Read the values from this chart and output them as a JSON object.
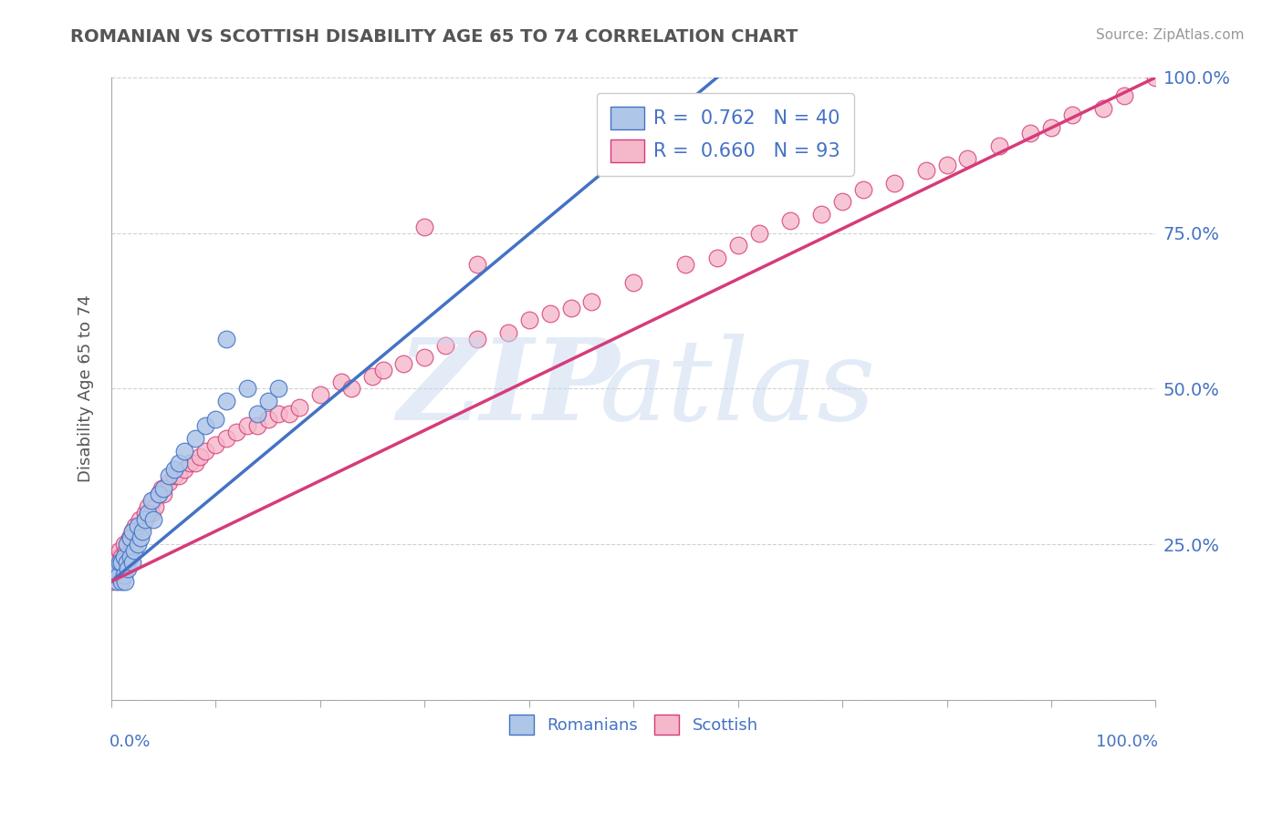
{
  "title": "ROMANIAN VS SCOTTISH DISABILITY AGE 65 TO 74 CORRELATION CHART",
  "source": "Source: ZipAtlas.com",
  "ylabel": "Disability Age 65 to 74",
  "legend_label1": "Romanians",
  "legend_label2": "Scottish",
  "romanian_color": "#aec6e8",
  "scottish_color": "#f5b8ca",
  "romanian_line_color": "#4472c4",
  "scottish_line_color": "#d63b7a",
  "background_color": "#ffffff",
  "axis_label_color": "#4472c4",
  "title_color": "#555555",
  "R_romanian": 0.762,
  "N_romanian": 40,
  "R_scottish": 0.66,
  "N_scottish": 93,
  "xlim": [
    0.0,
    1.0
  ],
  "ylim": [
    0.0,
    1.0
  ],
  "right_ytick_labels": [
    "25.0%",
    "50.0%",
    "75.0%",
    "100.0%"
  ],
  "right_ytick_values": [
    0.25,
    0.5,
    0.75,
    1.0
  ],
  "watermark_zip": "ZIP",
  "watermark_atlas": "atlas",
  "rom_line_x0": 0.0,
  "rom_line_y0": 0.19,
  "rom_line_x1": 0.58,
  "rom_line_y1": 1.0,
  "sco_line_x0": 0.0,
  "sco_line_y0": 0.19,
  "sco_line_x1": 1.0,
  "sco_line_y1": 1.0,
  "rom_scatter_x": [
    0.005,
    0.005,
    0.007,
    0.008,
    0.01,
    0.01,
    0.012,
    0.012,
    0.013,
    0.015,
    0.015,
    0.016,
    0.018,
    0.018,
    0.02,
    0.02,
    0.022,
    0.025,
    0.025,
    0.028,
    0.03,
    0.032,
    0.035,
    0.038,
    0.04,
    0.045,
    0.05,
    0.055,
    0.06,
    0.065,
    0.07,
    0.08,
    0.09,
    0.1,
    0.11,
    0.11,
    0.13,
    0.14,
    0.15,
    0.16
  ],
  "rom_scatter_y": [
    0.19,
    0.21,
    0.2,
    0.22,
    0.19,
    0.22,
    0.2,
    0.23,
    0.19,
    0.22,
    0.25,
    0.21,
    0.23,
    0.26,
    0.22,
    0.27,
    0.24,
    0.25,
    0.28,
    0.26,
    0.27,
    0.29,
    0.3,
    0.32,
    0.29,
    0.33,
    0.34,
    0.36,
    0.37,
    0.38,
    0.4,
    0.42,
    0.44,
    0.45,
    0.58,
    0.48,
    0.5,
    0.46,
    0.48,
    0.5
  ],
  "sco_scatter_x": [
    0.0,
    0.001,
    0.002,
    0.003,
    0.004,
    0.005,
    0.005,
    0.006,
    0.007,
    0.007,
    0.008,
    0.008,
    0.009,
    0.01,
    0.01,
    0.011,
    0.012,
    0.012,
    0.013,
    0.014,
    0.015,
    0.016,
    0.017,
    0.018,
    0.019,
    0.02,
    0.02,
    0.022,
    0.023,
    0.025,
    0.027,
    0.03,
    0.032,
    0.035,
    0.038,
    0.04,
    0.042,
    0.045,
    0.048,
    0.05,
    0.055,
    0.06,
    0.065,
    0.07,
    0.075,
    0.08,
    0.085,
    0.09,
    0.1,
    0.11,
    0.12,
    0.13,
    0.14,
    0.15,
    0.16,
    0.17,
    0.18,
    0.2,
    0.22,
    0.23,
    0.25,
    0.26,
    0.28,
    0.3,
    0.32,
    0.35,
    0.38,
    0.4,
    0.42,
    0.44,
    0.46,
    0.5,
    0.55,
    0.58,
    0.6,
    0.62,
    0.65,
    0.68,
    0.7,
    0.72,
    0.75,
    0.78,
    0.8,
    0.82,
    0.85,
    0.88,
    0.9,
    0.92,
    0.95,
    0.97,
    1.0,
    0.3,
    0.35
  ],
  "sco_scatter_y": [
    0.19,
    0.2,
    0.2,
    0.21,
    0.21,
    0.2,
    0.22,
    0.21,
    0.22,
    0.23,
    0.21,
    0.24,
    0.22,
    0.21,
    0.23,
    0.22,
    0.23,
    0.25,
    0.23,
    0.24,
    0.23,
    0.25,
    0.26,
    0.24,
    0.26,
    0.25,
    0.27,
    0.26,
    0.28,
    0.27,
    0.29,
    0.28,
    0.3,
    0.31,
    0.3,
    0.32,
    0.31,
    0.33,
    0.34,
    0.33,
    0.35,
    0.36,
    0.36,
    0.37,
    0.38,
    0.38,
    0.39,
    0.4,
    0.41,
    0.42,
    0.43,
    0.44,
    0.44,
    0.45,
    0.46,
    0.46,
    0.47,
    0.49,
    0.51,
    0.5,
    0.52,
    0.53,
    0.54,
    0.55,
    0.57,
    0.58,
    0.59,
    0.61,
    0.62,
    0.63,
    0.64,
    0.67,
    0.7,
    0.71,
    0.73,
    0.75,
    0.77,
    0.78,
    0.8,
    0.82,
    0.83,
    0.85,
    0.86,
    0.87,
    0.89,
    0.91,
    0.92,
    0.94,
    0.95,
    0.97,
    1.0,
    0.76,
    0.7
  ]
}
